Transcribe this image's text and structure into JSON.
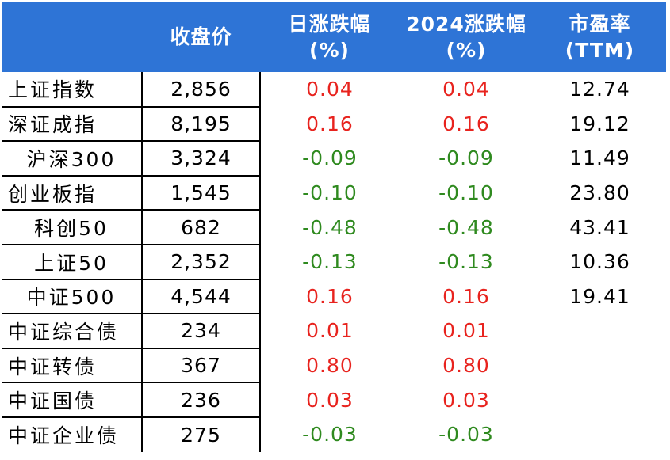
{
  "header": {
    "col_name": "",
    "col_close": "收盘价",
    "col_daily_l1": "日涨跌幅",
    "col_daily_l2": "(%)",
    "col_ytd_l1": "2024涨跌幅",
    "col_ytd_l2": "(%)",
    "col_pe_l1": "市盈率",
    "col_pe_l2": "(TTM)"
  },
  "rows": [
    {
      "name": "上证指数",
      "close": "2,856",
      "daily": "0.04",
      "ytd": "0.04",
      "pe": "12.74"
    },
    {
      "name": "深证成指",
      "close": "8,195",
      "daily": "0.16",
      "ytd": "0.16",
      "pe": "19.12"
    },
    {
      "name": "沪深300",
      "close": "3,324",
      "daily": "-0.09",
      "ytd": "-0.09",
      "pe": "11.49"
    },
    {
      "name": "创业板指",
      "close": "1,545",
      "daily": "-0.10",
      "ytd": "-0.10",
      "pe": "23.80"
    },
    {
      "name": "科创50",
      "close": "682",
      "daily": "-0.48",
      "ytd": "-0.48",
      "pe": "43.41"
    },
    {
      "name": "上证50",
      "close": "2,352",
      "daily": "-0.13",
      "ytd": "-0.13",
      "pe": "10.36"
    },
    {
      "name": "中证500",
      "close": "4,544",
      "daily": "0.16",
      "ytd": "0.16",
      "pe": "19.41"
    },
    {
      "name": "中证综合债",
      "close": "234",
      "daily": "0.01",
      "ytd": "0.01",
      "pe": ""
    },
    {
      "name": "中证转债",
      "close": "367",
      "daily": "0.80",
      "ytd": "0.80",
      "pe": ""
    },
    {
      "name": "中证国债",
      "close": "236",
      "daily": "0.03",
      "ytd": "0.03",
      "pe": ""
    },
    {
      "name": "中证企业债",
      "close": "275",
      "daily": "-0.03",
      "ytd": "-0.03",
      "pe": ""
    }
  ],
  "colors": {
    "header_bg": "#2e74d6",
    "positive": "#e8231e",
    "negative": "#2f8a1f"
  }
}
